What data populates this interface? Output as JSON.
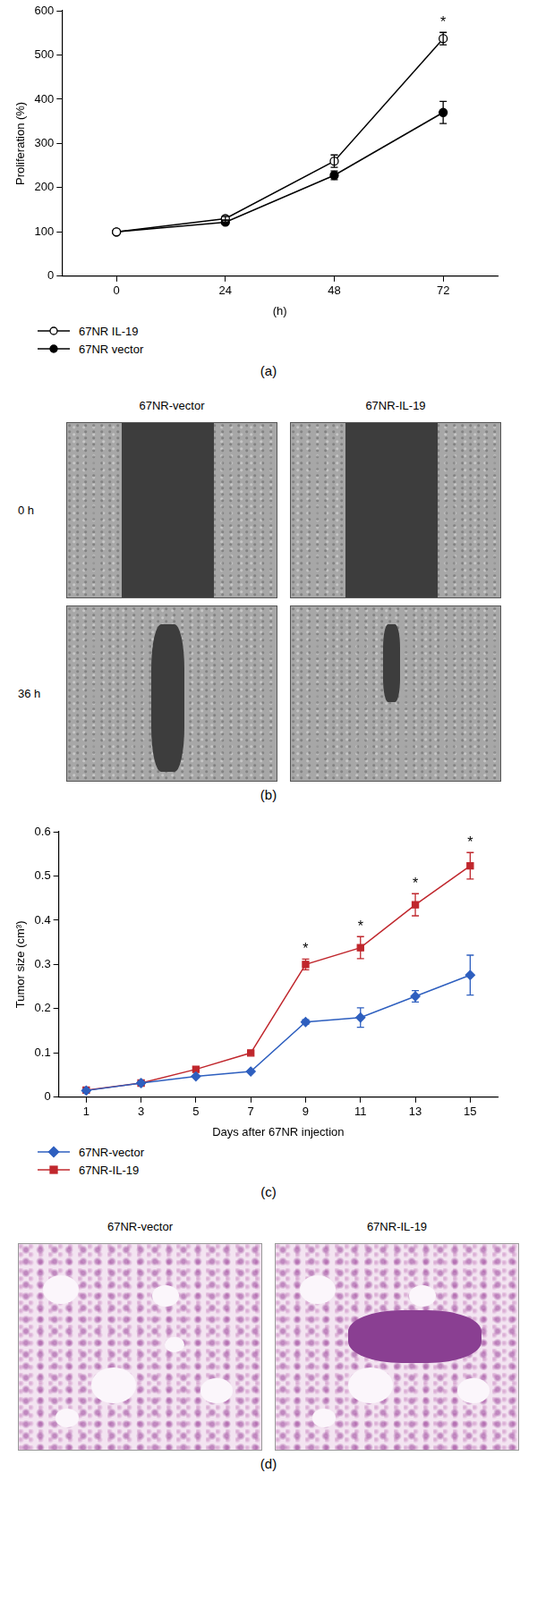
{
  "chart_data": [
    {
      "type": "line",
      "caption": "(a)",
      "x_label": "(h)",
      "y_label": "Proliferation (%)",
      "categories": [
        "0",
        "24",
        "48",
        "72"
      ],
      "ylim": [
        0,
        600
      ],
      "yticks": [
        0,
        100,
        200,
        300,
        400,
        500,
        600
      ],
      "grid": false,
      "legend": "bottom left",
      "series": [
        {
          "name": "67NR IL-19",
          "color": "#000000",
          "marker": "open_circle",
          "values": [
            100,
            130,
            260,
            537
          ],
          "errors": [
            0,
            5,
            14,
            14
          ]
        },
        {
          "name": "67NR vector",
          "color": "#000000",
          "marker": "circle",
          "values": [
            100,
            122,
            228,
            370
          ],
          "errors": [
            0,
            5,
            10,
            25
          ]
        }
      ],
      "annotations": [
        {
          "text": "*",
          "category": "72",
          "series": "67NR IL-19"
        }
      ]
    },
    {
      "type": "line",
      "caption": "(c)",
      "x_label": "Days after 67NR injection",
      "y_label": "Tumor size (cm³)",
      "categories": [
        "1",
        "3",
        "5",
        "7",
        "9",
        "11",
        "13",
        "15"
      ],
      "ylim": [
        0,
        0.6
      ],
      "yticks": [
        0,
        0.1,
        0.2,
        0.3,
        0.4,
        0.5,
        0.6
      ],
      "grid": false,
      "legend": "bottom left",
      "series": [
        {
          "name": "67NR-vector",
          "color": "#2e5fbf",
          "marker": "diamond",
          "values": [
            0.015,
            0.032,
            0.047,
            0.058,
            0.17,
            0.18,
            0.228,
            0.276
          ],
          "errors": [
            0,
            0,
            0,
            0,
            0.005,
            0.022,
            0.013,
            0.045
          ]
        },
        {
          "name": "67NR-IL-19",
          "color": "#c0272d",
          "marker": "square",
          "values": [
            0.016,
            0.032,
            0.063,
            0.1,
            0.3,
            0.338,
            0.435,
            0.523
          ],
          "errors": [
            0,
            0,
            0,
            0,
            0.012,
            0.025,
            0.025,
            0.03
          ]
        }
      ],
      "annotations": [
        {
          "text": "*",
          "category": "9",
          "series": "67NR-IL-19"
        },
        {
          "text": "*",
          "category": "11",
          "series": "67NR-IL-19"
        },
        {
          "text": "*",
          "category": "13",
          "series": "67NR-IL-19"
        },
        {
          "text": "*",
          "category": "15",
          "series": "67NR-IL-19"
        }
      ]
    }
  ],
  "image_panels": [
    {
      "caption": "(b)",
      "columns": [
        "67NR-vector",
        "67NR-IL-19"
      ],
      "rows": [
        "0 h",
        "36 h"
      ]
    },
    {
      "caption": "(d)",
      "columns": [
        "67NR-vector",
        "67NR-IL-19"
      ]
    }
  ]
}
